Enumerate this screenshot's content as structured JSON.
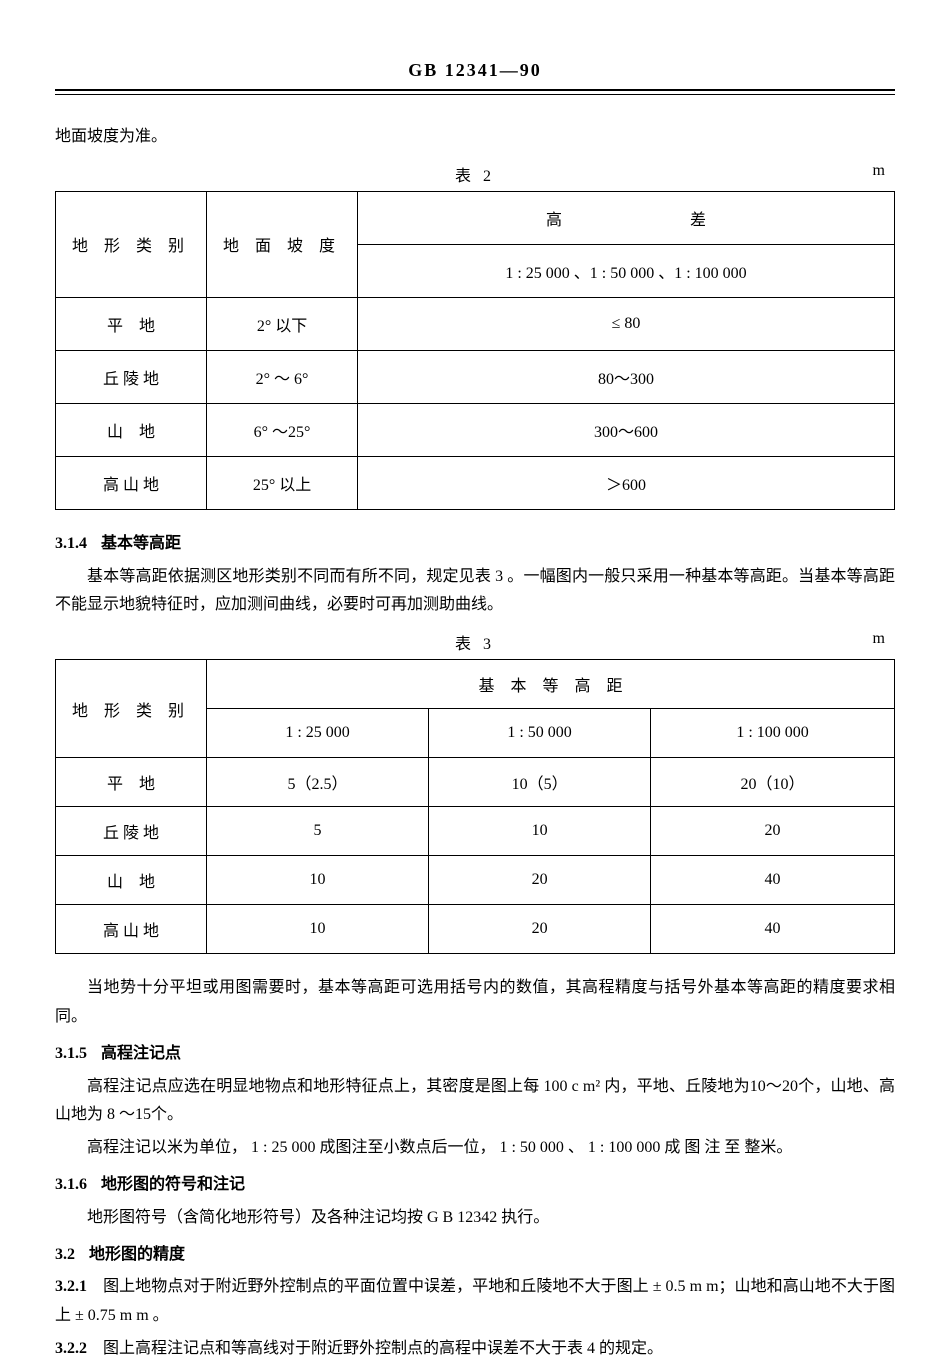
{
  "header": {
    "standard_code": "GB 12341—90"
  },
  "intro_line": "地面坡度为准。",
  "table2": {
    "caption": "表 2",
    "unit": "m",
    "th_terrain": "地 形 类 别",
    "th_slope": "地 面 坡 度",
    "th_gaocha": "高　　　　　　　　差",
    "th_scales": "1 : 25 000 、1 : 50 000 、1 : 100 000",
    "rows": [
      {
        "terrain": "平　地",
        "slope": "2° 以下",
        "val": "≤ 80"
      },
      {
        "terrain": "丘 陵 地",
        "slope": "2° ～ 6°",
        "val": "80～300"
      },
      {
        "terrain": "山　地",
        "slope": "6° ～25°",
        "val": "300～600"
      },
      {
        "terrain": "高 山 地",
        "slope": "25° 以上",
        "val": "＞600"
      }
    ]
  },
  "s314": {
    "num": "3.1.4",
    "title": "基本等高距",
    "para": "基本等高距依据测区地形类别不同而有所不同，规定见表 3 。一幅图内一般只采用一种基本等高距。当基本等高距不能显示地貌特征时，应加测间曲线，必要时可再加测助曲线。"
  },
  "table3": {
    "caption": "表 3",
    "unit": "m",
    "th_terrain": "地 形 类 别",
    "th_contour": "基　本　等　高　距",
    "th_c1": "1 : 25 000",
    "th_c2": "1 : 50 000",
    "th_c3": "1 : 100 000",
    "rows": [
      {
        "terrain": "平　地",
        "c1": "5（2.5）",
        "c2": "10（5）",
        "c3": "20（10）"
      },
      {
        "terrain": "丘 陵 地",
        "c1": "5",
        "c2": "10",
        "c3": "20"
      },
      {
        "terrain": "山　地",
        "c1": "10",
        "c2": "20",
        "c3": "40"
      },
      {
        "terrain": "高 山 地",
        "c1": "10",
        "c2": "20",
        "c3": "40"
      }
    ]
  },
  "after_t3": "当地势十分平坦或用图需要时，基本等高距可选用括号内的数值，其高程精度与括号外基本等高距的精度要求相同。",
  "s315": {
    "num": "3.1.5",
    "title": "高程注记点",
    "para1": "高程注记点应选在明显地物点和地形特征点上，其密度是图上每 100 c m² 内，平地、丘陵地为10～20个，山地、高山地为 8 ～15个。",
    "para2": "高程注记以米为单位， 1 : 25 000 成图注至小数点后一位， 1 : 50 000 、 1 : 100 000 成 图 注 至 整米。"
  },
  "s316": {
    "num": "3.1.6",
    "title": "地形图的符号和注记",
    "para": "地形图符号（含简化地形符号）及各种注记均按 G B 12342 执行。"
  },
  "s32": {
    "num": "3.2",
    "title": "地形图的精度"
  },
  "s321": {
    "num": "3.2.1",
    "para": "图上地物点对于附近野外控制点的平面位置中误差，平地和丘陵地不大于图上 ± 0.5 m m；山地和高山地不大于图上 ± 0.75 m m 。"
  },
  "s322": {
    "num": "3.2.2",
    "para": "图上高程注记点和等高线对于附近野外控制点的高程中误差不大于表 4 的规定。"
  }
}
